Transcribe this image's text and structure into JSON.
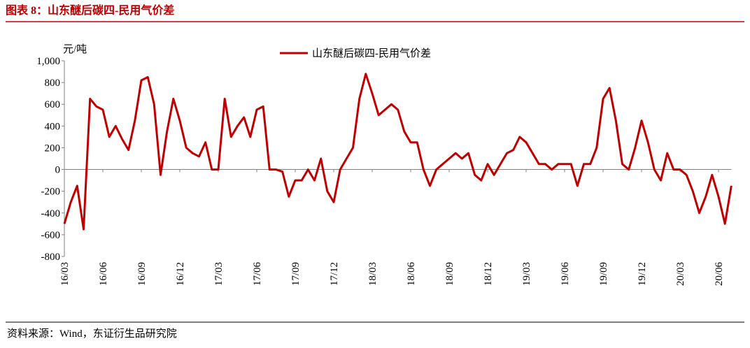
{
  "chart_data": {
    "type": "line",
    "title": "图表 8：山东醚后碳四-民用气价差",
    "y_unit": "元/吨",
    "source": "资料来源：Wind，东证衍生品研究院",
    "categories": [
      "16/03",
      null,
      null,
      null,
      null,
      null,
      "16/06",
      null,
      null,
      null,
      null,
      null,
      "16/09",
      null,
      null,
      null,
      null,
      null,
      "16/12",
      null,
      null,
      null,
      null,
      null,
      "17/03",
      null,
      null,
      null,
      null,
      null,
      "17/06",
      null,
      null,
      null,
      null,
      null,
      "17/09",
      null,
      null,
      null,
      null,
      null,
      "17/12",
      null,
      null,
      null,
      null,
      null,
      "18/03",
      null,
      null,
      null,
      null,
      null,
      "18/06",
      null,
      null,
      null,
      null,
      null,
      "18/09",
      null,
      null,
      null,
      null,
      null,
      "18/12",
      null,
      null,
      null,
      null,
      null,
      "19/03",
      null,
      null,
      null,
      null,
      null,
      "19/06",
      null,
      null,
      null,
      null,
      null,
      "19/09",
      null,
      null,
      null,
      null,
      null,
      "19/12",
      null,
      null,
      null,
      null,
      null,
      "20/03",
      null,
      null,
      null,
      null,
      null,
      "20/06",
      null,
      null
    ],
    "series": [
      {
        "name": "山东醚后碳四-民用气价差",
        "color": "#c00000",
        "values": [
          -500,
          -300,
          -150,
          -550,
          650,
          580,
          550,
          300,
          400,
          280,
          180,
          450,
          820,
          850,
          600,
          -50,
          350,
          650,
          450,
          200,
          150,
          120,
          250,
          0,
          0,
          650,
          300,
          400,
          480,
          300,
          550,
          580,
          0,
          0,
          -20,
          -250,
          -100,
          -100,
          0,
          -100,
          100,
          -200,
          -300,
          0,
          100,
          200,
          650,
          880,
          700,
          500,
          550,
          600,
          550,
          350,
          250,
          250,
          0,
          -150,
          0,
          50,
          100,
          150,
          100,
          150,
          -50,
          -100,
          50,
          -50,
          50,
          150,
          180,
          300,
          250,
          150,
          50,
          50,
          0,
          50,
          50,
          50,
          -150,
          50,
          50,
          200,
          650,
          750,
          450,
          50,
          0,
          200,
          450,
          250,
          0,
          -100,
          150,
          0,
          0,
          -50,
          -200,
          -400,
          -250,
          -50,
          -250,
          -500,
          -150
        ]
      }
    ],
    "ylim": [
      -800,
      1000
    ],
    "yticks": [
      -800,
      -600,
      -400,
      -200,
      0,
      200,
      400,
      600,
      800,
      {
        "value": 1000,
        "label": "1,000"
      }
    ],
    "legend": "top"
  }
}
